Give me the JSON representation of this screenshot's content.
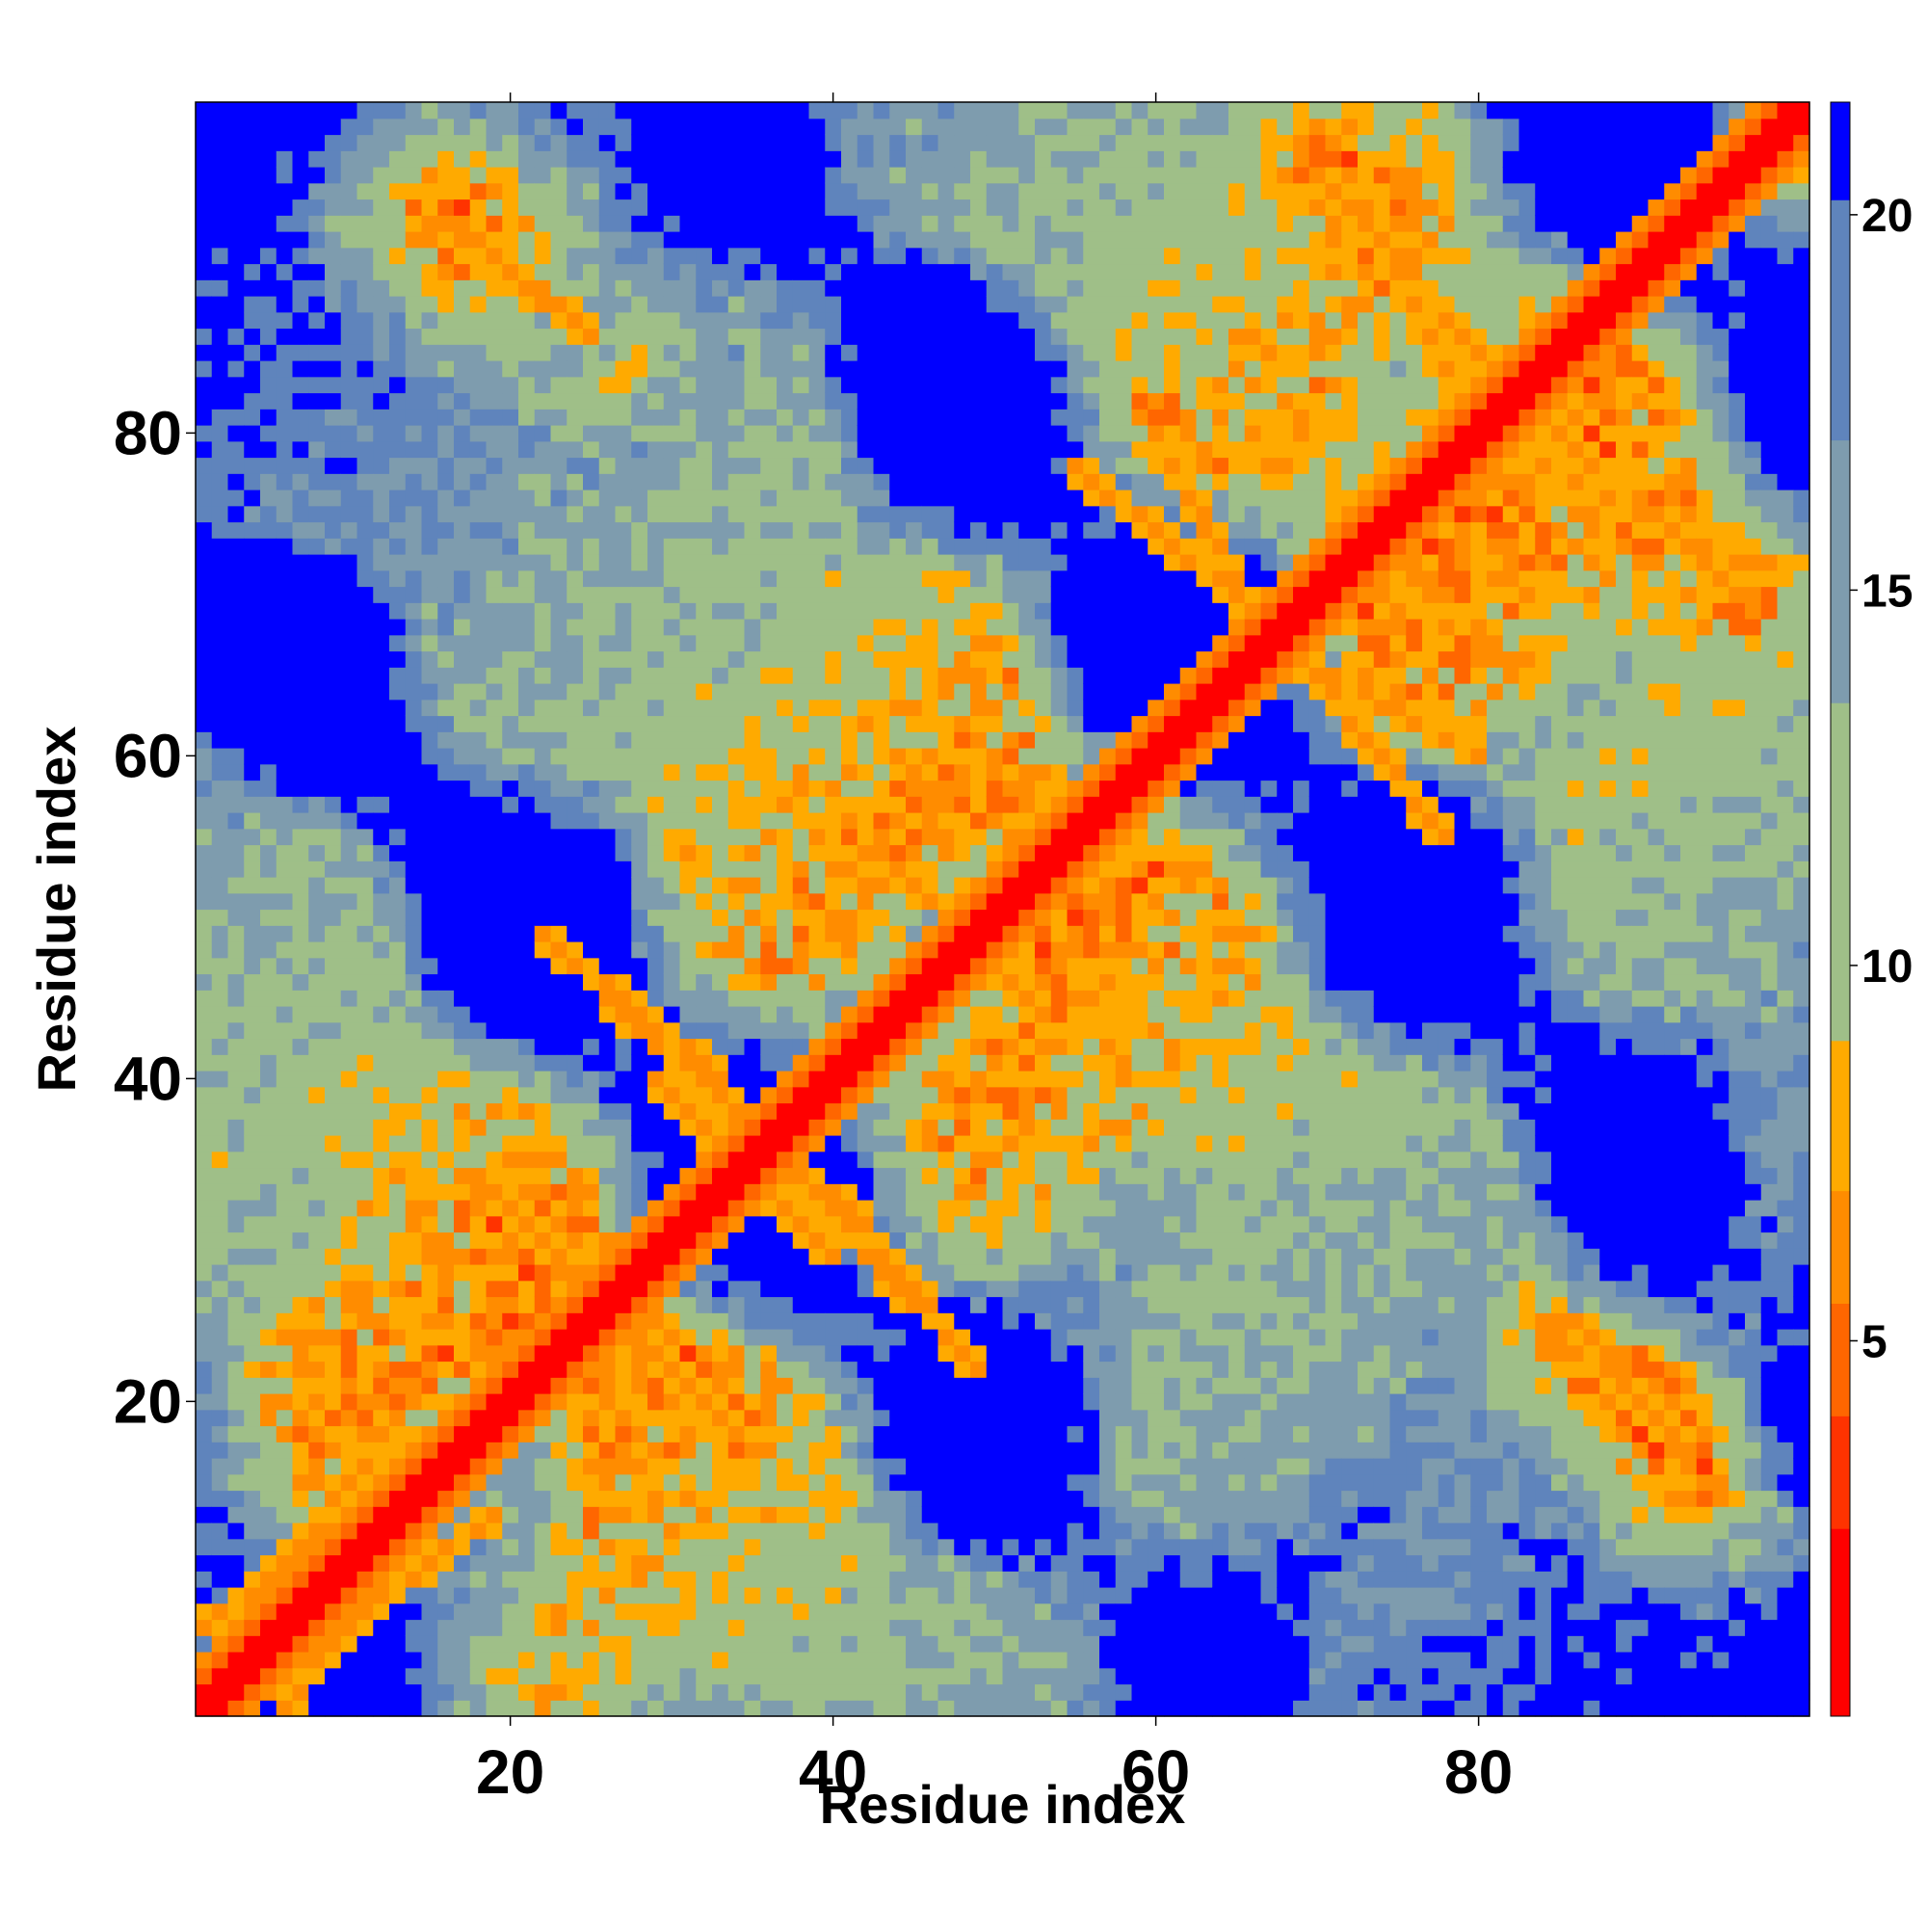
{
  "chart_data": {
    "type": "heatmap",
    "title": "",
    "xlabel": "Residue index",
    "ylabel": "Residue index",
    "xlim": [
      0.5,
      100.5
    ],
    "ylim": [
      0.5,
      100.5
    ],
    "x_ticks": [
      20,
      40,
      60,
      80
    ],
    "y_ticks": [
      20,
      40,
      60,
      80
    ],
    "n_residues": 100,
    "colorbar": {
      "ticks": [
        5,
        10,
        15,
        20
      ],
      "range": [
        0,
        21.5
      ],
      "colors": [
        "#ff0000",
        "#ff3300",
        "#ff6600",
        "#ff8c00",
        "#ffaa00",
        "#9fbf88",
        "#7e9cae",
        "#5f84bc",
        "#0000ff"
      ],
      "bounds": [
        0,
        2.5,
        4.0,
        5.5,
        7.0,
        9.0,
        13.5,
        17.0,
        20.2,
        21.5
      ]
    },
    "grid": false,
    "legend": "colorbar-right",
    "contact_segments": [
      {
        "from": [
          1,
          1
        ],
        "to": [
          100,
          100
        ],
        "distance": 1.0,
        "note": "diagonal"
      },
      {
        "from": [
          17,
          93
        ],
        "to": [
          25,
          86
        ],
        "distance": 6
      },
      {
        "from": [
          70,
          96
        ],
        "to": [
          84,
          81
        ],
        "distance": 6
      },
      {
        "from": [
          55,
          78
        ],
        "to": [
          66,
          69
        ],
        "distance": 6
      },
      {
        "from": [
          82,
          79
        ],
        "to": [
          96,
          72
        ],
        "distance": 6
      },
      {
        "from": [
          69,
          66
        ],
        "to": [
          80,
          60
        ],
        "distance": 6
      },
      {
        "from": [
          22,
          49
        ],
        "to": [
          33,
          40
        ],
        "distance": 6
      },
      {
        "from": [
          29,
          40
        ],
        "to": [
          33,
          36
        ],
        "distance": 6
      },
      {
        "from": [
          38,
          34
        ],
        "to": [
          45,
          26
        ],
        "distance": 6
      },
      {
        "from": [
          19,
          33
        ],
        "to": [
          25,
          26
        ],
        "distance": 6
      },
      {
        "from": [
          27,
          25
        ],
        "to": [
          33,
          19
        ],
        "distance": 6
      },
      {
        "from": [
          86,
          25
        ],
        "to": [
          93,
          16
        ],
        "distance": 6
      },
      {
        "from": [
          7,
          11
        ],
        "to": [
          13,
          19
        ],
        "distance": 6
      },
      {
        "from": [
          1,
          6
        ],
        "to": [
          10,
          13
        ],
        "distance": 6
      },
      {
        "from": [
          52,
          57
        ],
        "to": [
          59,
          53
        ],
        "distance": 6
      },
      {
        "from": [
          44,
          53
        ],
        "to": [
          50,
          48
        ],
        "distance": 6
      }
    ]
  }
}
